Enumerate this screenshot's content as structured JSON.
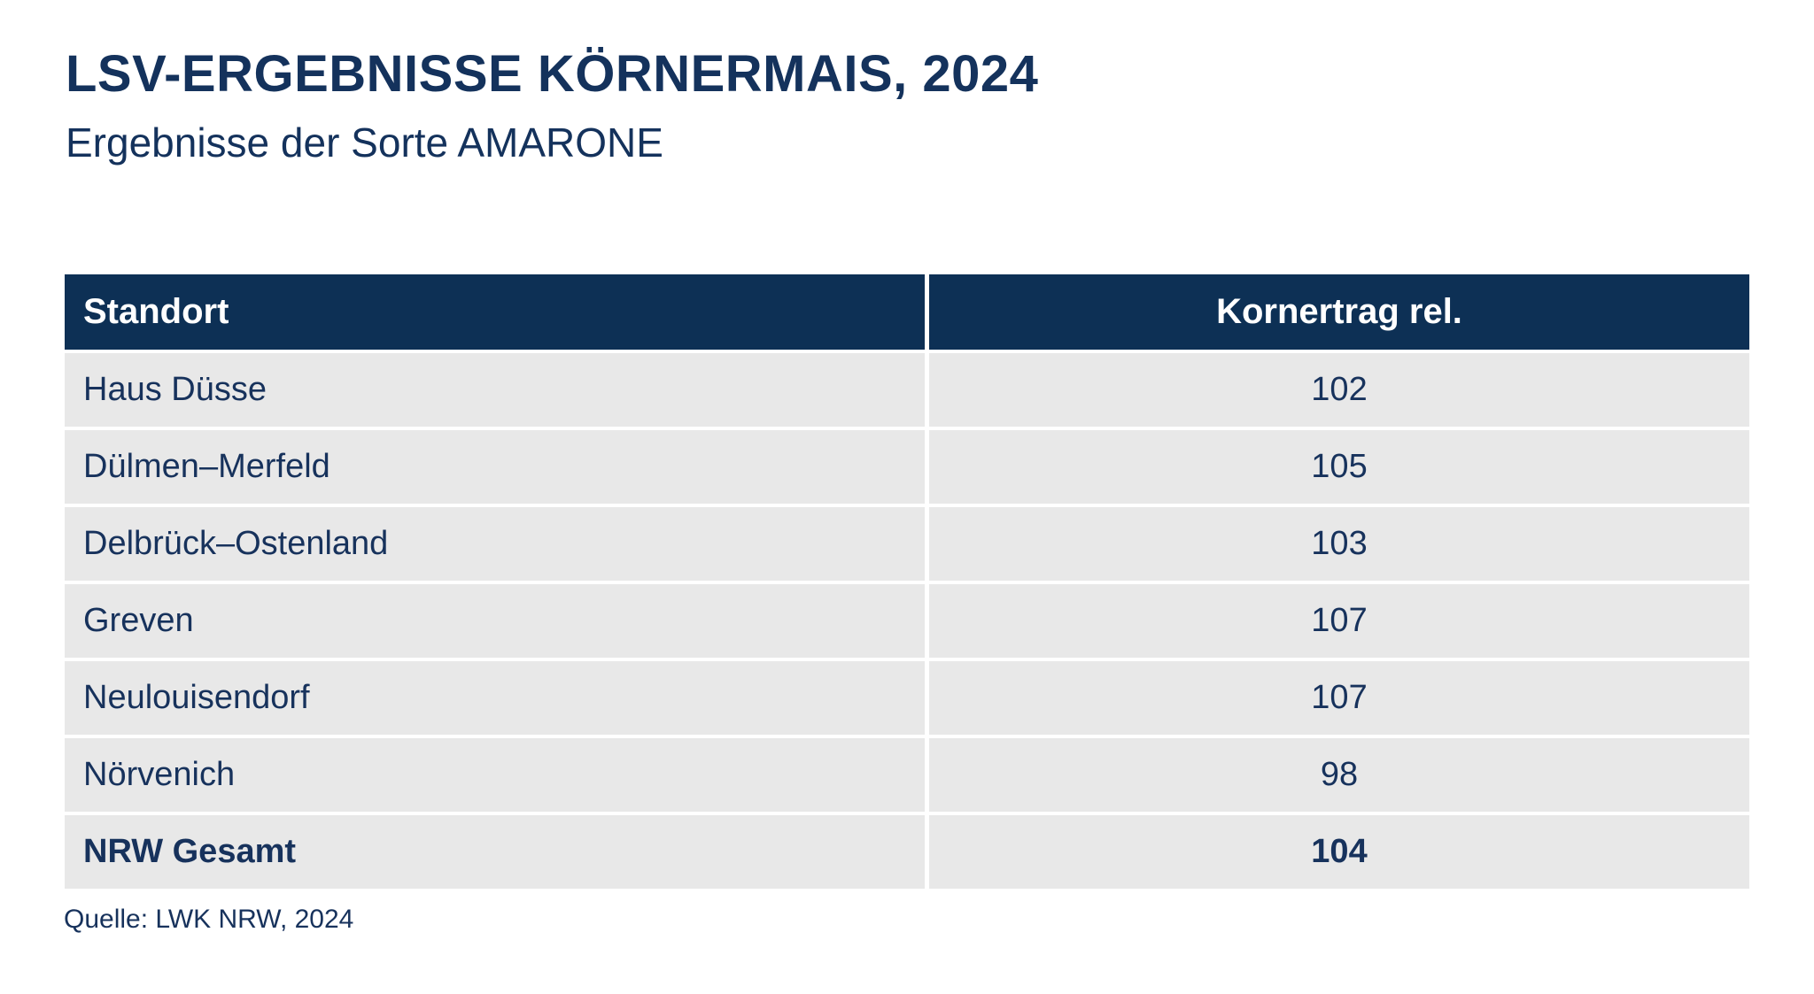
{
  "title": "LSV-ERGEBNISSE KÖRNERMAIS, 2024",
  "subtitle": "Ergebnisse der Sorte AMARONE",
  "source": "Quelle: LWK NRW, 2024",
  "colors": {
    "header_bg": "#0d3055",
    "header_text": "#ffffff",
    "body_text": "#17325c",
    "row_bg": "#e8e8e8",
    "page_bg": "#ffffff"
  },
  "table": {
    "header": {
      "standort": "Standort",
      "value": "Kornertrag rel."
    },
    "rows": [
      {
        "standort": "Haus Düsse",
        "value": "102"
      },
      {
        "standort": "Dülmen–Merfeld",
        "value": "105"
      },
      {
        "standort": "Delbrück–Ostenland",
        "value": "103"
      },
      {
        "standort": "Greven",
        "value": "107"
      },
      {
        "standort": "Neulouisendorf",
        "value": "107"
      },
      {
        "standort": "Nörvenich",
        "value": "98"
      },
      {
        "standort": "NRW Gesamt",
        "value": "104"
      }
    ]
  },
  "chart_data": {
    "type": "table",
    "title": "LSV-ERGEBNISSE KÖRNERMAIS, 2024",
    "subtitle": "Ergebnisse der Sorte AMARONE",
    "columns": [
      "Standort",
      "Kornertrag rel."
    ],
    "rows": [
      [
        "Haus Düsse",
        102
      ],
      [
        "Dülmen–Merfeld",
        105
      ],
      [
        "Delbrück–Ostenland",
        103
      ],
      [
        "Greven",
        107
      ],
      [
        "Neulouisendorf",
        107
      ],
      [
        "Nörvenich",
        98
      ],
      [
        "NRW Gesamt",
        104
      ]
    ],
    "source": "Quelle: LWK NRW, 2024"
  }
}
